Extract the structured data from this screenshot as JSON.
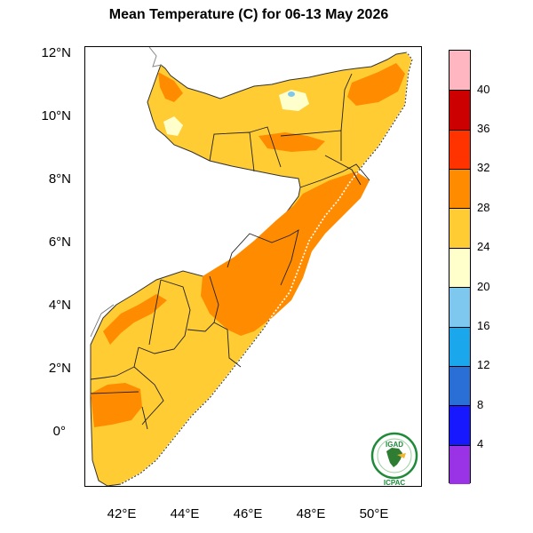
{
  "title": "Mean Temperature (C) for 06-13 May 2026",
  "y_ticks": [
    "12°N",
    "10°N",
    "8°N",
    "6°N",
    "4°N",
    "2°N",
    "0°"
  ],
  "x_ticks": [
    "42°E",
    "44°E",
    "46°E",
    "48°E",
    "50°E"
  ],
  "colorbar": {
    "labels": [
      "40",
      "36",
      "32",
      "28",
      "24",
      "20",
      "16",
      "12",
      "8",
      "4"
    ],
    "colors": [
      "#ffb6c1",
      "#cc0000",
      "#ff3300",
      "#ff8c00",
      "#ffcc33",
      "#ffffcc",
      "#7ec8f0",
      "#1aa7ec",
      "#2a6fd6",
      "#1818ff",
      "#9a32e6"
    ]
  },
  "logo": {
    "top_text": "IGAD",
    "bottom_text": "ICPAC"
  }
}
